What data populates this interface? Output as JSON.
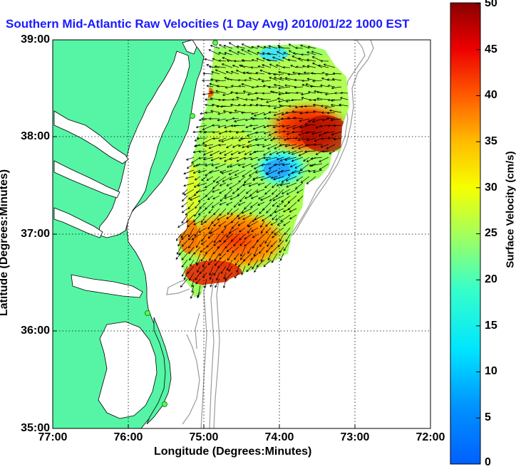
{
  "title": "Southern Mid-Atlantic Raw Velocities (1 Day Avg) 2010/01/22 1000 EST",
  "map": {
    "xlabel": "Longitude (Degrees:Minutes)",
    "ylabel": "Latitude (Degrees:Minutes)",
    "x_ticks": [
      "77:00",
      "76:00",
      "75:00",
      "74:00",
      "73:00",
      "72:00"
    ],
    "y_ticks": [
      "39:00",
      "38:00",
      "37:00",
      "36:00",
      "35:00"
    ],
    "lon_range": [
      -77,
      -72
    ],
    "lat_range": [
      35,
      39
    ],
    "grid": "dotted",
    "land_color": "#55f5a5",
    "water_color": "#ffffff",
    "isobath_color": "#9a9a9a"
  },
  "colorbar": {
    "label": "Surface Velocity (cm/s)",
    "ticks": [
      "50",
      "45",
      "40",
      "35",
      "30",
      "25",
      "20",
      "15",
      "10",
      "5",
      "0"
    ],
    "range": [
      0,
      50
    ],
    "colormap": "jet"
  }
}
